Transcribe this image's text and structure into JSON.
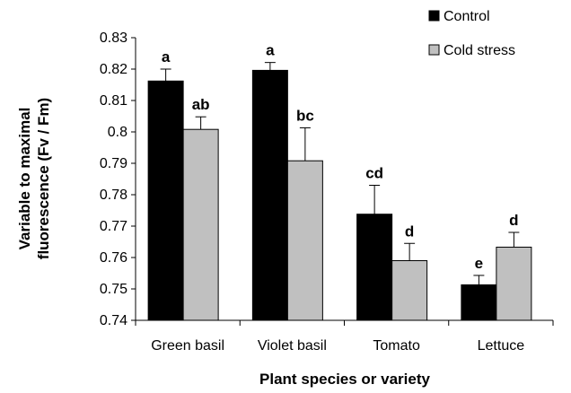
{
  "chart_data": {
    "type": "bar",
    "categories": [
      "Green basil",
      "Violet basil",
      "Tomato",
      "Lettuce"
    ],
    "series": [
      {
        "name": "Control",
        "color": "#000000",
        "values": [
          0.8162,
          0.8196,
          0.7738,
          0.7513
        ],
        "errors": [
          0.0038,
          0.0025,
          0.0092,
          0.003
        ],
        "labels": [
          "a",
          "a",
          "cd",
          "e"
        ]
      },
      {
        "name": "Cold stress",
        "color": "#c0c0c0",
        "values": [
          0.8008,
          0.7908,
          0.759,
          0.7633
        ],
        "errors": [
          0.004,
          0.0105,
          0.0055,
          0.0047
        ],
        "labels": [
          "ab",
          "bc",
          "d",
          "d"
        ]
      }
    ],
    "xlabel": "Plant species or variety",
    "ylabel_lines": [
      "Variable to maximal",
      "fluorescence (Fv / Fm)"
    ],
    "ylim": [
      0.74,
      0.83
    ],
    "yticks": [
      "0.74",
      "0.75",
      "0.76",
      "0.77",
      "0.78",
      "0.79",
      "0.8",
      "0.81",
      "0.82",
      "0.83"
    ],
    "grid": false,
    "legend_position": "top-right"
  }
}
